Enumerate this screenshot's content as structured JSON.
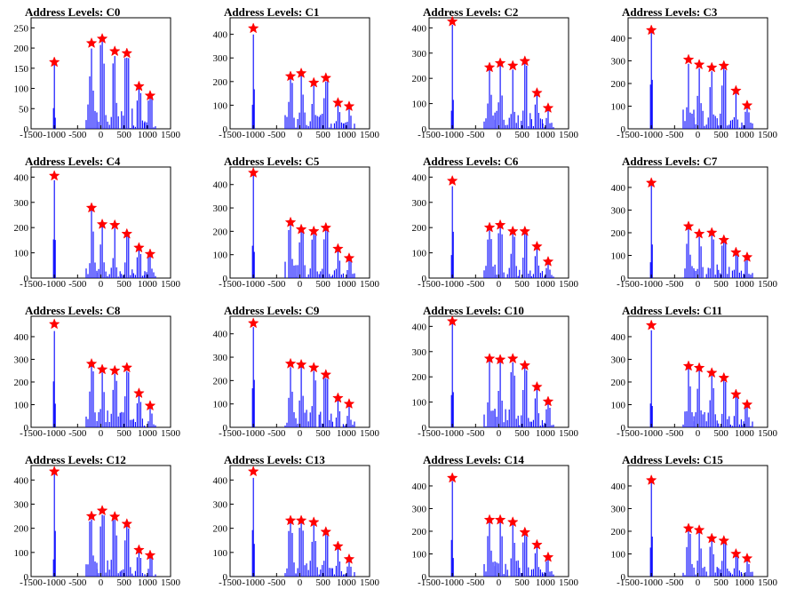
{
  "figure": {
    "colors": {
      "hist": "#0000ff",
      "marker": "#ff0000",
      "axis": "#000000"
    }
  },
  "chart_data": [
    {
      "type": "bar",
      "title": "Address Levels: C0",
      "xlim": [
        -1500,
        1500
      ],
      "ylim": [
        0,
        275
      ],
      "xticks": [
        -1500,
        -1000,
        -500,
        0,
        500,
        1000,
        1500
      ],
      "yticks": [
        0,
        50,
        100,
        150,
        200,
        250
      ],
      "peaks": [
        {
          "x": -1000,
          "y": 165
        },
        {
          "x": -200,
          "y": 212
        },
        {
          "x": 30,
          "y": 223
        },
        {
          "x": 300,
          "y": 192
        },
        {
          "x": 560,
          "y": 187
        },
        {
          "x": 820,
          "y": 105
        },
        {
          "x": 1060,
          "y": 82
        }
      ]
    },
    {
      "type": "bar",
      "title": "Address Levels: C1",
      "xlim": [
        -1500,
        1500
      ],
      "ylim": [
        0,
        470
      ],
      "xticks": [
        -1500,
        -1000,
        -500,
        0,
        500,
        1000,
        1500
      ],
      "yticks": [
        0,
        100,
        200,
        300,
        400
      ],
      "peaks": [
        {
          "x": -1000,
          "y": 425
        },
        {
          "x": -200,
          "y": 222
        },
        {
          "x": 30,
          "y": 235
        },
        {
          "x": 300,
          "y": 195
        },
        {
          "x": 560,
          "y": 215
        },
        {
          "x": 820,
          "y": 110
        },
        {
          "x": 1060,
          "y": 95
        }
      ]
    },
    {
      "type": "bar",
      "title": "Address Levels: C2",
      "xlim": [
        -1500,
        1500
      ],
      "ylim": [
        0,
        440
      ],
      "xticks": [
        -1500,
        -1000,
        -500,
        0,
        500,
        1000,
        1500
      ],
      "yticks": [
        0,
        100,
        200,
        300,
        400
      ],
      "peaks": [
        {
          "x": -1000,
          "y": 425
        },
        {
          "x": -200,
          "y": 243
        },
        {
          "x": 30,
          "y": 260
        },
        {
          "x": 300,
          "y": 250
        },
        {
          "x": 560,
          "y": 268
        },
        {
          "x": 820,
          "y": 142
        },
        {
          "x": 1060,
          "y": 82
        }
      ]
    },
    {
      "type": "bar",
      "title": "Address Levels: C3",
      "xlim": [
        -1500,
        1500
      ],
      "ylim": [
        0,
        490
      ],
      "xticks": [
        -1500,
        -1000,
        -500,
        0,
        500,
        1000,
        1500
      ],
      "yticks": [
        0,
        100,
        200,
        300,
        400
      ],
      "peaks": [
        {
          "x": -1000,
          "y": 435
        },
        {
          "x": -200,
          "y": 305
        },
        {
          "x": 30,
          "y": 283
        },
        {
          "x": 300,
          "y": 270
        },
        {
          "x": 560,
          "y": 278
        },
        {
          "x": 820,
          "y": 168
        },
        {
          "x": 1060,
          "y": 103
        }
      ]
    },
    {
      "type": "bar",
      "title": "Address Levels: C4",
      "xlim": [
        -1500,
        1500
      ],
      "ylim": [
        0,
        440
      ],
      "xticks": [
        -1500,
        -1000,
        -500,
        0,
        500,
        1000,
        1500
      ],
      "yticks": [
        0,
        100,
        200,
        300,
        400
      ],
      "peaks": [
        {
          "x": -1000,
          "y": 405
        },
        {
          "x": -200,
          "y": 278
        },
        {
          "x": 30,
          "y": 213
        },
        {
          "x": 300,
          "y": 210
        },
        {
          "x": 560,
          "y": 175
        },
        {
          "x": 820,
          "y": 120
        },
        {
          "x": 1060,
          "y": 95
        }
      ]
    },
    {
      "type": "bar",
      "title": "Address Levels: C5",
      "xlim": [
        -1500,
        1500
      ],
      "ylim": [
        0,
        475
      ],
      "xticks": [
        -1500,
        -1000,
        -500,
        0,
        500,
        1000,
        1500
      ],
      "yticks": [
        0,
        100,
        200,
        300,
        400
      ],
      "peaks": [
        {
          "x": -1000,
          "y": 450
        },
        {
          "x": -200,
          "y": 238
        },
        {
          "x": 30,
          "y": 208
        },
        {
          "x": 300,
          "y": 200
        },
        {
          "x": 560,
          "y": 215
        },
        {
          "x": 820,
          "y": 125
        },
        {
          "x": 1060,
          "y": 85
        }
      ]
    },
    {
      "type": "bar",
      "title": "Address Levels: C6",
      "xlim": [
        -1500,
        1500
      ],
      "ylim": [
        0,
        440
      ],
      "xticks": [
        -1500,
        -1000,
        -500,
        0,
        500,
        1000,
        1500
      ],
      "yticks": [
        0,
        100,
        200,
        300,
        400
      ],
      "peaks": [
        {
          "x": -1000,
          "y": 385
        },
        {
          "x": -200,
          "y": 200
        },
        {
          "x": 30,
          "y": 210
        },
        {
          "x": 300,
          "y": 185
        },
        {
          "x": 560,
          "y": 185
        },
        {
          "x": 820,
          "y": 125
        },
        {
          "x": 1060,
          "y": 65
        }
      ]
    },
    {
      "type": "bar",
      "title": "Address Levels: C7",
      "xlim": [
        -1500,
        1500
      ],
      "ylim": [
        0,
        490
      ],
      "xticks": [
        -1500,
        -1000,
        -500,
        0,
        500,
        1000,
        1500
      ],
      "yticks": [
        0,
        100,
        200,
        300,
        400
      ],
      "peaks": [
        {
          "x": -1000,
          "y": 420
        },
        {
          "x": -200,
          "y": 228
        },
        {
          "x": 30,
          "y": 195
        },
        {
          "x": 300,
          "y": 200
        },
        {
          "x": 560,
          "y": 168
        },
        {
          "x": 820,
          "y": 113
        },
        {
          "x": 1060,
          "y": 92
        }
      ]
    },
    {
      "type": "bar",
      "title": "Address Levels: C8",
      "xlim": [
        -1500,
        1500
      ],
      "ylim": [
        0,
        490
      ],
      "xticks": [
        -1500,
        -1000,
        -500,
        0,
        500,
        1000,
        1500
      ],
      "yticks": [
        0,
        100,
        200,
        300,
        400
      ],
      "peaks": [
        {
          "x": -1000,
          "y": 455
        },
        {
          "x": -200,
          "y": 280
        },
        {
          "x": 30,
          "y": 255
        },
        {
          "x": 300,
          "y": 250
        },
        {
          "x": 560,
          "y": 263
        },
        {
          "x": 820,
          "y": 150
        },
        {
          "x": 1060,
          "y": 95
        }
      ]
    },
    {
      "type": "bar",
      "title": "Address Levels: C9",
      "xlim": [
        -1500,
        1500
      ],
      "ylim": [
        0,
        475
      ],
      "xticks": [
        -1500,
        -1000,
        -500,
        0,
        500,
        1000,
        1500
      ],
      "yticks": [
        0,
        100,
        200,
        300,
        400
      ],
      "peaks": [
        {
          "x": -1000,
          "y": 445
        },
        {
          "x": -200,
          "y": 272
        },
        {
          "x": 30,
          "y": 268
        },
        {
          "x": 300,
          "y": 255
        },
        {
          "x": 560,
          "y": 225
        },
        {
          "x": 820,
          "y": 125
        },
        {
          "x": 1060,
          "y": 100
        }
      ]
    },
    {
      "type": "bar",
      "title": "Address Levels: C10",
      "xlim": [
        -1500,
        1500
      ],
      "ylim": [
        0,
        440
      ],
      "xticks": [
        -1500,
        -1000,
        -500,
        0,
        500,
        1000,
        1500
      ],
      "yticks": [
        0,
        100,
        200,
        300,
        400
      ],
      "peaks": [
        {
          "x": -1000,
          "y": 420
        },
        {
          "x": -200,
          "y": 272
        },
        {
          "x": 30,
          "y": 268
        },
        {
          "x": 300,
          "y": 272
        },
        {
          "x": 560,
          "y": 245
        },
        {
          "x": 820,
          "y": 160
        },
        {
          "x": 1060,
          "y": 102
        }
      ]
    },
    {
      "type": "bar",
      "title": "Address Levels: C11",
      "xlim": [
        -1500,
        1500
      ],
      "ylim": [
        0,
        490
      ],
      "xticks": [
        -1500,
        -1000,
        -500,
        0,
        500,
        1000,
        1500
      ],
      "yticks": [
        0,
        100,
        200,
        300,
        400
      ],
      "peaks": [
        {
          "x": -1000,
          "y": 450
        },
        {
          "x": -200,
          "y": 270
        },
        {
          "x": 30,
          "y": 262
        },
        {
          "x": 300,
          "y": 240
        },
        {
          "x": 560,
          "y": 218
        },
        {
          "x": 820,
          "y": 145
        },
        {
          "x": 1060,
          "y": 100
        }
      ]
    },
    {
      "type": "bar",
      "title": "Address Levels: C12",
      "xlim": [
        -1500,
        1500
      ],
      "ylim": [
        0,
        460
      ],
      "xticks": [
        -1500,
        -1000,
        -500,
        0,
        500,
        1000,
        1500
      ],
      "yticks": [
        0,
        100,
        200,
        300,
        400
      ],
      "peaks": [
        {
          "x": -1000,
          "y": 435
        },
        {
          "x": -200,
          "y": 250
        },
        {
          "x": 30,
          "y": 273
        },
        {
          "x": 300,
          "y": 248
        },
        {
          "x": 560,
          "y": 218
        },
        {
          "x": 820,
          "y": 110
        },
        {
          "x": 1060,
          "y": 88
        }
      ]
    },
    {
      "type": "bar",
      "title": "Address Levels: C13",
      "xlim": [
        -1500,
        1500
      ],
      "ylim": [
        0,
        460
      ],
      "xticks": [
        -1500,
        -1000,
        -500,
        0,
        500,
        1000,
        1500
      ],
      "yticks": [
        0,
        100,
        200,
        300,
        400
      ],
      "peaks": [
        {
          "x": -1000,
          "y": 435
        },
        {
          "x": -200,
          "y": 232
        },
        {
          "x": 30,
          "y": 232
        },
        {
          "x": 300,
          "y": 225
        },
        {
          "x": 560,
          "y": 185
        },
        {
          "x": 820,
          "y": 125
        },
        {
          "x": 1060,
          "y": 72
        }
      ]
    },
    {
      "type": "bar",
      "title": "Address Levels: C14",
      "xlim": [
        -1500,
        1500
      ],
      "ylim": [
        0,
        490
      ],
      "xticks": [
        -1500,
        -1000,
        -500,
        0,
        500,
        1000,
        1500
      ],
      "yticks": [
        0,
        100,
        200,
        300,
        400
      ],
      "peaks": [
        {
          "x": -1000,
          "y": 435
        },
        {
          "x": -200,
          "y": 250
        },
        {
          "x": 30,
          "y": 250
        },
        {
          "x": 300,
          "y": 240
        },
        {
          "x": 560,
          "y": 195
        },
        {
          "x": 820,
          "y": 140
        },
        {
          "x": 1060,
          "y": 85
        }
      ]
    },
    {
      "type": "bar",
      "title": "Address Levels: C15",
      "xlim": [
        -1500,
        1500
      ],
      "ylim": [
        0,
        490
      ],
      "xticks": [
        -1500,
        -1000,
        -500,
        0,
        500,
        1000,
        1500
      ],
      "yticks": [
        0,
        100,
        200,
        300,
        400
      ],
      "peaks": [
        {
          "x": -1000,
          "y": 425
        },
        {
          "x": -200,
          "y": 212
        },
        {
          "x": 30,
          "y": 205
        },
        {
          "x": 300,
          "y": 168
        },
        {
          "x": 560,
          "y": 158
        },
        {
          "x": 820,
          "y": 100
        },
        {
          "x": 1060,
          "y": 80
        }
      ]
    }
  ]
}
